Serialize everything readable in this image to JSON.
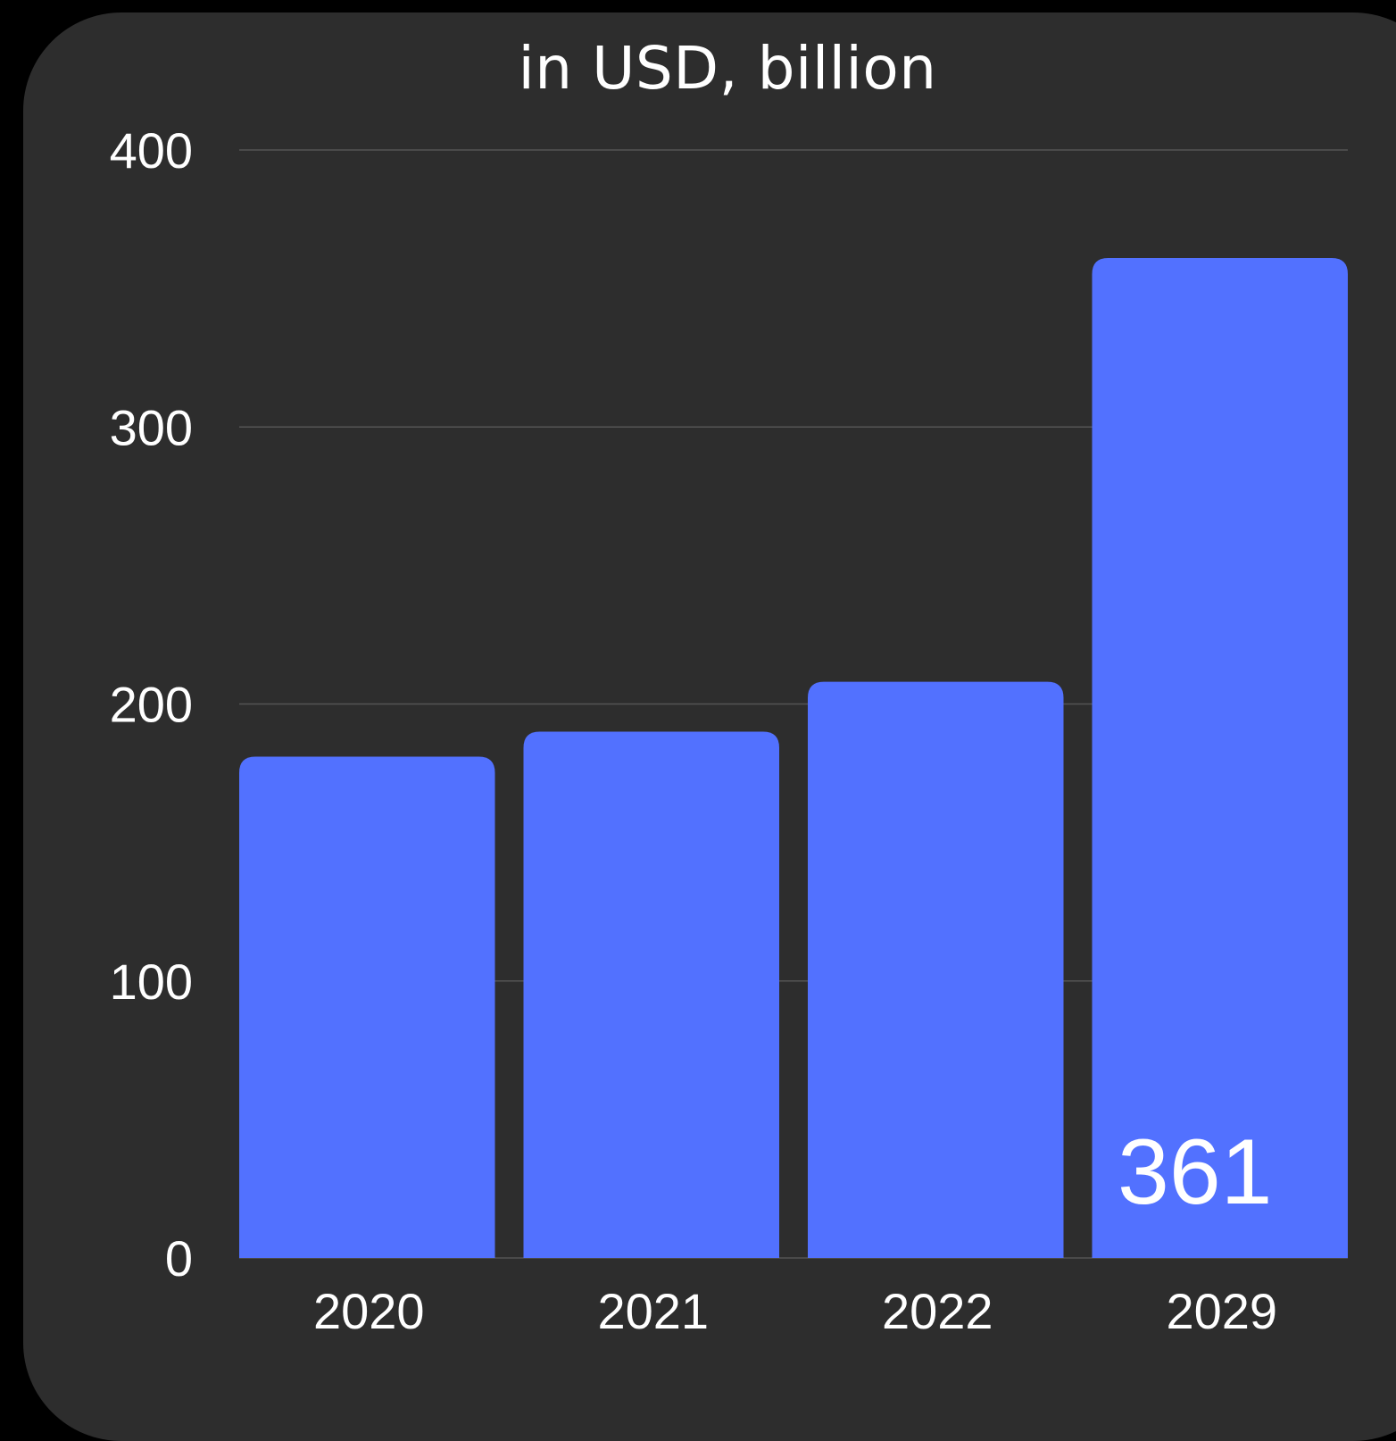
{
  "chart_data": {
    "type": "bar",
    "title": "in USD, billion",
    "categories": [
      "2020",
      "2021",
      "2022",
      "2029"
    ],
    "values": [
      181,
      190,
      208,
      361
    ],
    "ylim": [
      0,
      400
    ],
    "yticks": [
      "0",
      "100",
      "200",
      "300",
      "400"
    ],
    "grid": true,
    "data_labels": [
      {
        "category": "2029",
        "text": "361"
      }
    ],
    "colors": {
      "bar": "#5271ff",
      "background": "#2d2d2d",
      "page": "#000000",
      "text": "#ffffff",
      "grid": "#555555"
    }
  }
}
